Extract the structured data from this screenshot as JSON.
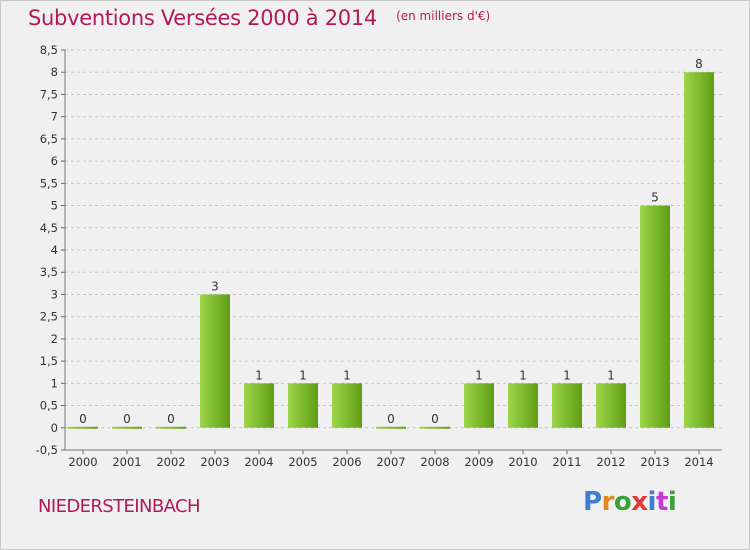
{
  "title": "Subventions Versées 2000 à 2014",
  "subtitle": "(en milliers d'€)",
  "commune": "NIEDERSTEINBACH",
  "logo": {
    "text": "Proxiti",
    "letters": [
      {
        "ch": "P",
        "color": "#3a7fd0"
      },
      {
        "ch": "r",
        "color": "#e08a1e"
      },
      {
        "ch": "o",
        "color": "#3aa03a"
      },
      {
        "ch": "x",
        "color": "#e03a3a"
      },
      {
        "ch": "i",
        "color": "#3a7fd0"
      },
      {
        "ch": "t",
        "color": "#c83ad0"
      },
      {
        "ch": "i",
        "color": "#3aa03a"
      }
    ]
  },
  "colors": {
    "title": "#b2195b",
    "bar_light": "#9fd54a",
    "bar_dark": "#5e9e14",
    "background": "#f0f0f0",
    "grid": "#c4c4c4"
  },
  "chart_data": {
    "type": "bar",
    "title": "Subventions Versées 2000 à 2014",
    "subtitle": "(en milliers d'€)",
    "xlabel": "",
    "ylabel": "",
    "categories": [
      "2000",
      "2001",
      "2002",
      "2003",
      "2004",
      "2005",
      "2006",
      "2007",
      "2008",
      "2009",
      "2010",
      "2011",
      "2012",
      "2013",
      "2014"
    ],
    "values": [
      0,
      0,
      0,
      3,
      1,
      1,
      1,
      0,
      0,
      1,
      1,
      1,
      1,
      5,
      8
    ],
    "data_labels": [
      "0",
      "0",
      "0",
      "3",
      "1",
      "1",
      "1",
      "0",
      "0",
      "1",
      "1",
      "1",
      "1",
      "5",
      "8"
    ],
    "ylim": [
      -0.5,
      8.5
    ],
    "yticks": [
      -0.5,
      0,
      0.5,
      1,
      1.5,
      2,
      2.5,
      3,
      3.5,
      4,
      4.5,
      5,
      5.5,
      6,
      6.5,
      7,
      7.5,
      8,
      8.5
    ],
    "ytick_labels": [
      "-0,5",
      "0",
      "0,5",
      "1",
      "1,5",
      "2",
      "2,5",
      "3",
      "3,5",
      "4",
      "4,5",
      "5",
      "5,5",
      "6",
      "6,5",
      "7",
      "7,5",
      "8",
      "8,5"
    ],
    "grid": true,
    "legend": "none"
  }
}
